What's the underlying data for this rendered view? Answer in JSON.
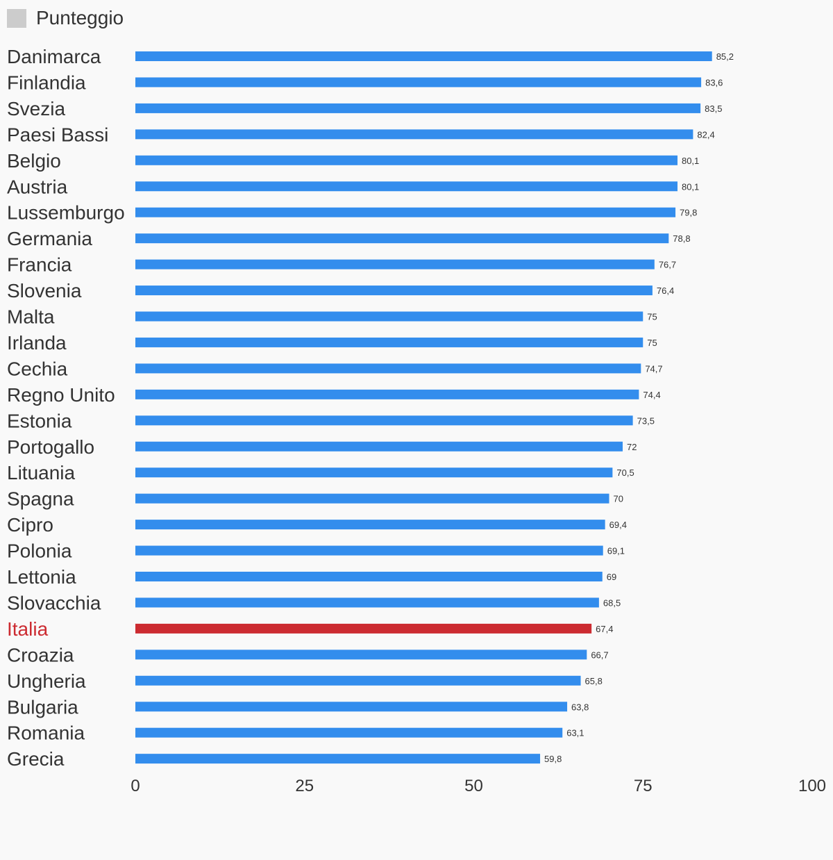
{
  "chart_data": {
    "type": "bar",
    "orientation": "horizontal",
    "legend": {
      "label": "Punteggio",
      "color": "#cccccc",
      "position": "top-left"
    },
    "categories": [
      "Danimarca",
      "Finlandia",
      "Svezia",
      "Paesi Bassi",
      "Belgio",
      "Austria",
      "Lussemburgo",
      "Germania",
      "Francia",
      "Slovenia",
      "Malta",
      "Irlanda",
      "Cechia",
      "Regno Unito",
      "Estonia",
      "Portogallo",
      "Lituania",
      "Spagna",
      "Cipro",
      "Polonia",
      "Lettonia",
      "Slovacchia",
      "Italia",
      "Croazia",
      "Ungheria",
      "Bulgaria",
      "Romania",
      "Grecia"
    ],
    "values": [
      85.2,
      83.6,
      83.5,
      82.4,
      80.1,
      80.1,
      79.8,
      78.8,
      76.7,
      76.4,
      75,
      75,
      74.7,
      74.4,
      73.5,
      72,
      70.5,
      70,
      69.4,
      69.1,
      69,
      68.5,
      67.4,
      66.7,
      65.8,
      63.8,
      63.1,
      59.8
    ],
    "value_labels": [
      "85,2",
      "83,6",
      "83,5",
      "82,4",
      "80,1",
      "80,1",
      "79,8",
      "78,8",
      "76,7",
      "76,4",
      "75",
      "75",
      "74,7",
      "74,4",
      "73,5",
      "72",
      "70,5",
      "70",
      "69,4",
      "69,1",
      "69",
      "68,5",
      "67,4",
      "66,7",
      "65,8",
      "63,8",
      "63,1",
      "59,8"
    ],
    "highlight": "Italia",
    "xlim": [
      0,
      100
    ],
    "xticks": [
      0,
      25,
      50,
      75,
      100
    ],
    "colors": {
      "bar": "#338ded",
      "highlight": "#cc2b31",
      "label": "#333333",
      "highlight_label": "#cc2b31",
      "background": "#f9f9f9"
    },
    "grid": false
  }
}
